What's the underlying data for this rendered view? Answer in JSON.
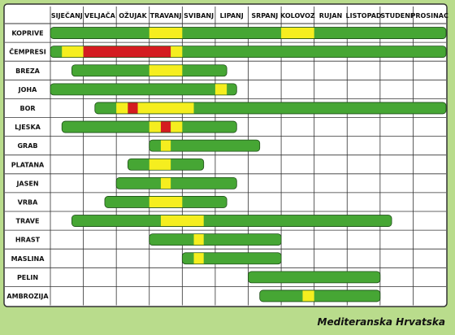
{
  "chart_data": {
    "type": "table",
    "months": [
      "SIJEČANJ",
      "VELJAČA",
      "OŽUJAK",
      "TRAVANJ",
      "SVIBANJ",
      "LIPANJ",
      "SRPANJ",
      "KOLOVOZ",
      "RUJAN",
      "LISTOPAD",
      "STUDENI",
      "PROSINAC"
    ],
    "colors": {
      "green": "#46a634",
      "yellow": "#f5ee1f",
      "red": "#d41c20",
      "background": "#b9dc8c",
      "grid": "#333333"
    },
    "rows": [
      {
        "name": "KOPRIVE",
        "start": 0.0,
        "end": 12.0,
        "segments": [
          {
            "color": "yellow",
            "start": 3.0,
            "end": 4.0
          },
          {
            "color": "yellow",
            "start": 7.0,
            "end": 8.0
          }
        ]
      },
      {
        "name": "ČEMPRESI",
        "start": 0.0,
        "end": 12.0,
        "segments": [
          {
            "color": "yellow",
            "start": 0.35,
            "end": 1.0
          },
          {
            "color": "red",
            "start": 1.0,
            "end": 3.65
          },
          {
            "color": "yellow",
            "start": 3.65,
            "end": 4.0
          }
        ]
      },
      {
        "name": "BREZA",
        "start": 0.65,
        "end": 5.35,
        "segments": [
          {
            "color": "yellow",
            "start": 3.0,
            "end": 4.0
          }
        ]
      },
      {
        "name": "JOHA",
        "start": 0.0,
        "end": 5.65,
        "segments": [
          {
            "color": "yellow",
            "start": 5.0,
            "end": 5.35
          }
        ]
      },
      {
        "name": "BOR",
        "start": 1.35,
        "end": 12.0,
        "segments": [
          {
            "color": "yellow",
            "start": 2.0,
            "end": 2.35
          },
          {
            "color": "red",
            "start": 2.35,
            "end": 2.65
          },
          {
            "color": "yellow",
            "start": 2.65,
            "end": 4.35
          }
        ]
      },
      {
        "name": "LJESKA",
        "start": 0.35,
        "end": 5.65,
        "segments": [
          {
            "color": "yellow",
            "start": 3.0,
            "end": 3.35
          },
          {
            "color": "red",
            "start": 3.35,
            "end": 3.65
          },
          {
            "color": "yellow",
            "start": 3.65,
            "end": 4.0
          }
        ]
      },
      {
        "name": "GRAB",
        "start": 3.0,
        "end": 6.35,
        "segments": [
          {
            "color": "yellow",
            "start": 3.35,
            "end": 3.65
          }
        ]
      },
      {
        "name": "PLATANA",
        "start": 2.35,
        "end": 4.65,
        "segments": [
          {
            "color": "yellow",
            "start": 3.0,
            "end": 3.65
          }
        ]
      },
      {
        "name": "JASEN",
        "start": 2.0,
        "end": 5.65,
        "segments": [
          {
            "color": "yellow",
            "start": 3.35,
            "end": 3.65
          }
        ]
      },
      {
        "name": "VRBA",
        "start": 1.65,
        "end": 5.35,
        "segments": [
          {
            "color": "yellow",
            "start": 3.0,
            "end": 4.0
          }
        ]
      },
      {
        "name": "TRAVE",
        "start": 0.65,
        "end": 10.35,
        "segments": [
          {
            "color": "yellow",
            "start": 3.35,
            "end": 4.65
          }
        ]
      },
      {
        "name": "HRAST",
        "start": 3.0,
        "end": 7.0,
        "segments": [
          {
            "color": "yellow",
            "start": 4.35,
            "end": 4.65
          }
        ]
      },
      {
        "name": "MASLINA",
        "start": 4.0,
        "end": 7.0,
        "segments": [
          {
            "color": "yellow",
            "start": 4.35,
            "end": 4.65
          }
        ]
      },
      {
        "name": "PELIN",
        "start": 6.0,
        "end": 10.0,
        "segments": []
      },
      {
        "name": "AMBROZIJA",
        "start": 6.35,
        "end": 10.0,
        "segments": [
          {
            "color": "yellow",
            "start": 7.65,
            "end": 8.0
          }
        ]
      }
    ]
  },
  "caption": "Mediteranska Hrvatska"
}
